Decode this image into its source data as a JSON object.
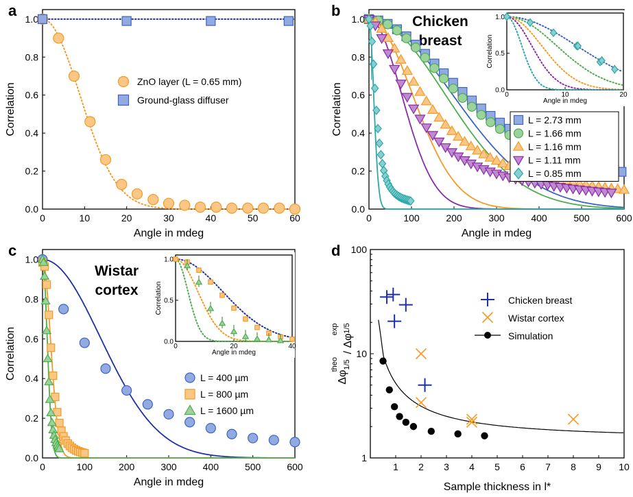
{
  "chart_data": [
    {
      "panel": "a",
      "type": "scatter",
      "xlabel": "Angle in mdeg",
      "ylabel": "Correlation",
      "xlim": [
        0,
        60
      ],
      "ylim": [
        0,
        1.05
      ],
      "xticks": [
        "0",
        "10",
        "20",
        "30",
        "40",
        "50",
        "60"
      ],
      "yticks": [
        "0.0",
        "0.2",
        "0.4",
        "0.6",
        "0.8",
        "1.0"
      ],
      "series": [
        {
          "name": "ZnO layer (L = 0.65 mm)",
          "color": "#f59a23",
          "marker": "circle",
          "line": "dotted",
          "x": [
            0,
            3.8,
            7.5,
            11.3,
            15,
            18.8,
            22.5,
            26.3,
            30,
            33.8,
            37.5,
            41.3,
            45,
            48.8,
            52.5,
            56.3,
            60
          ],
          "y": [
            1.0,
            0.9,
            0.7,
            0.46,
            0.26,
            0.13,
            0.08,
            0.05,
            0.03,
            0.02,
            0.01,
            0.01,
            0.005,
            0.005,
            0.005,
            0.005,
            0.0
          ]
        },
        {
          "name": "Ground-glass diffuser",
          "color": "#3a64c6",
          "marker": "square",
          "line": "dotted",
          "x": [
            0,
            20,
            40,
            58.5
          ],
          "y": [
            1.0,
            0.99,
            0.99,
            0.99
          ]
        }
      ]
    },
    {
      "panel": "b",
      "type": "scatter",
      "annotation": "Chicken\nbreast",
      "xlabel": "Angle in mdeg",
      "ylabel": "Correlation",
      "xlim": [
        0,
        600
      ],
      "ylim": [
        0,
        1.05
      ],
      "xticks": [
        "0",
        "100",
        "200",
        "300",
        "400",
        "500",
        "600"
      ],
      "yticks": [
        "0.0",
        "0.2",
        "0.4",
        "0.6",
        "0.8",
        "1.0"
      ],
      "series": [
        {
          "name": "L = 2.73 mm",
          "color": "#3a64c6",
          "marker": "square",
          "curve_hwhm": 230
        },
        {
          "name": "L = 1.66 mm",
          "color": "#4cae4c",
          "marker": "circle",
          "curve_hwhm": 210
        },
        {
          "name": "L = 1.16 mm",
          "color": "#f59a23",
          "marker": "triangle-up",
          "curve_hwhm": 120
        },
        {
          "name": "L = 1.11 mm",
          "color": "#8a2aa8",
          "marker": "triangle-down",
          "curve_hwhm": 90
        },
        {
          "name": "L = 0.85 mm",
          "color": "#2aa8a8",
          "marker": "diamond",
          "curve_hwhm": 13
        }
      ],
      "inset": {
        "xlabel": "Angle in mdeg",
        "ylabel": "Correlation",
        "xlim": [
          0,
          20
        ],
        "ylim": [
          0,
          1.05
        ],
        "xticks": [
          "0",
          "10",
          "20"
        ],
        "yticks": [
          "0.0",
          "0.5",
          "1.0"
        ],
        "points": {
          "x": [
            0,
            4,
            8,
            12,
            16
          ],
          "y": [
            1.0,
            0.92,
            0.78,
            0.6,
            0.38
          ],
          "x2": [
            18.5
          ],
          "y2": [
            0.28
          ]
        }
      }
    },
    {
      "panel": "c",
      "type": "scatter",
      "annotation": "Wistar\ncortex",
      "xlabel": "Angle in mdeg",
      "ylabel": "Correlation",
      "xlim": [
        0,
        600
      ],
      "ylim": [
        0,
        1.05
      ],
      "xticks": [
        "0",
        "100",
        "200",
        "300",
        "400",
        "500",
        "600"
      ],
      "yticks": [
        "0.0",
        "0.2",
        "0.4",
        "0.6",
        "0.8",
        "1.0"
      ],
      "series": [
        {
          "name": "L =   400 µm",
          "color": "#3a64c6",
          "marker": "circle",
          "x": [
            0,
            50,
            100,
            150,
            200,
            250,
            300,
            350,
            400,
            450,
            500,
            550,
            600
          ],
          "y": [
            1.0,
            0.75,
            0.58,
            0.45,
            0.34,
            0.27,
            0.22,
            0.18,
            0.15,
            0.12,
            0.1,
            0.09,
            0.08
          ]
        },
        {
          "name": "L =   800 µm",
          "color": "#f59a23",
          "marker": "square"
        },
        {
          "name": "L = 1600 µm",
          "color": "#4cae4c",
          "marker": "triangle-up"
        }
      ],
      "inset": {
        "xlabel": "Angle in mdeg",
        "ylabel": "Correlation",
        "xlim": [
          0,
          40
        ],
        "ylim": [
          0,
          1.05
        ],
        "xticks": [
          "0",
          "20",
          "40"
        ],
        "yticks": [
          "0.0",
          "0.5",
          "1.0"
        ]
      }
    },
    {
      "panel": "d",
      "type": "scatter",
      "xlabel": "Sample thickness in l*",
      "ylabel": "Δφ_1/5^theo / Δφ_1/5^exp",
      "xlim": [
        0,
        10
      ],
      "ylim": [
        1,
        100
      ],
      "yscale": "log",
      "xticks": [
        "1",
        "2",
        "3",
        "4",
        "5",
        "6",
        "7",
        "8",
        "9",
        "10"
      ],
      "yticks": [
        "1",
        "10",
        "100"
      ],
      "series": [
        {
          "name": "Chicken breast",
          "color": "#1f2fa8",
          "marker": "plus",
          "x": [
            0.65,
            0.9,
            0.95,
            1.4,
            2.15
          ],
          "y": [
            35,
            37,
            20.5,
            29.5,
            5.0
          ]
        },
        {
          "name": "Wistar cortex",
          "color": "#f59a23",
          "marker": "x",
          "x": [
            2.0,
            2.0,
            4.0,
            4.0,
            8.0
          ],
          "y": [
            10,
            3.4,
            2.35,
            2.2,
            2.35
          ]
        },
        {
          "name": "Simulation",
          "color": "#000000",
          "marker": "dot-line",
          "x": [
            0.5,
            0.75,
            0.95,
            1.15,
            1.4,
            1.7,
            2.4,
            3.45,
            4.5
          ],
          "y": [
            8.5,
            4.5,
            3.1,
            2.5,
            2.2,
            2.0,
            1.8,
            1.7,
            1.63
          ]
        }
      ]
    }
  ]
}
